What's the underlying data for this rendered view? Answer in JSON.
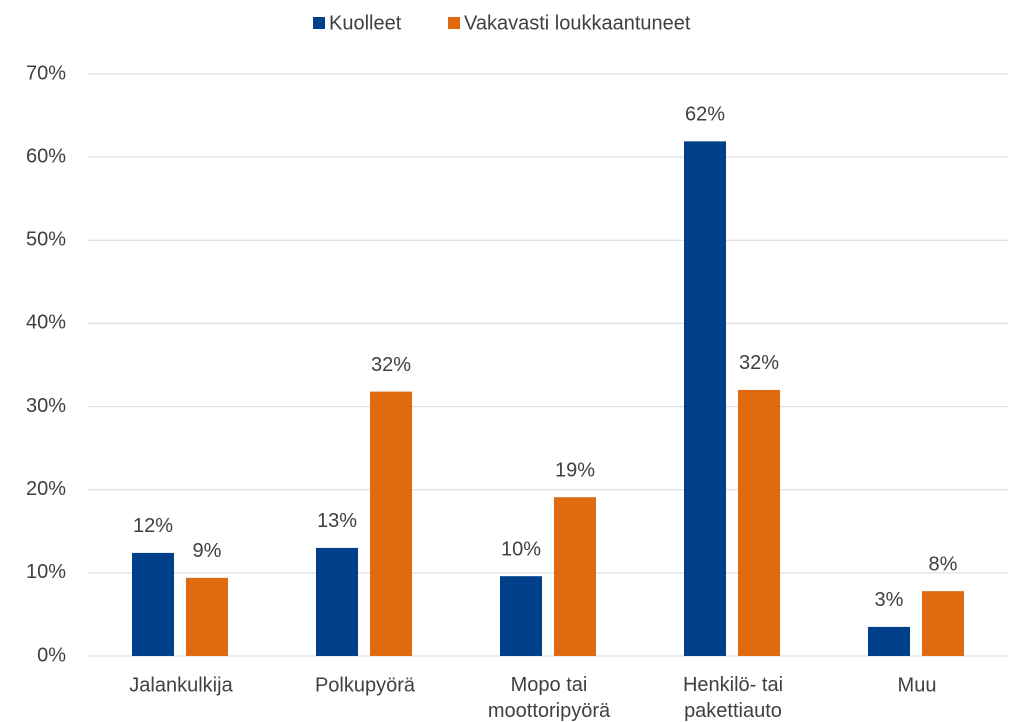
{
  "chart_data": {
    "type": "bar",
    "categories": [
      "Jalankulkija",
      "Polkupyörä",
      "Mopo tai\nmoottoripyörä",
      "Henkilö- tai\npakettiauto",
      "Muu"
    ],
    "series": [
      {
        "name": "Kuolleet",
        "color": "#003f8a",
        "values": [
          12.4,
          13.0,
          9.6,
          61.9,
          3.5
        ],
        "value_labels": [
          "12%",
          "13%",
          "10%",
          "62%",
          "3%"
        ]
      },
      {
        "name": "Vakavasti loukkaantuneet",
        "color": "#e06a10",
        "values": [
          9.4,
          31.8,
          19.1,
          32.0,
          7.8
        ],
        "value_labels": [
          "9%",
          "32%",
          "19%",
          "32%",
          "8%"
        ]
      }
    ],
    "ylim": [
      0,
      70
    ],
    "yticks": [
      {
        "value": 0,
        "label": "0%"
      },
      {
        "value": 10,
        "label": "10%"
      },
      {
        "value": 20,
        "label": "20%"
      },
      {
        "value": 30,
        "label": "30%"
      },
      {
        "value": 40,
        "label": "40%"
      },
      {
        "value": 50,
        "label": "50%"
      },
      {
        "value": 60,
        "label": "60%"
      },
      {
        "value": 70,
        "label": "70%"
      }
    ],
    "grid": true,
    "legend": "top"
  }
}
